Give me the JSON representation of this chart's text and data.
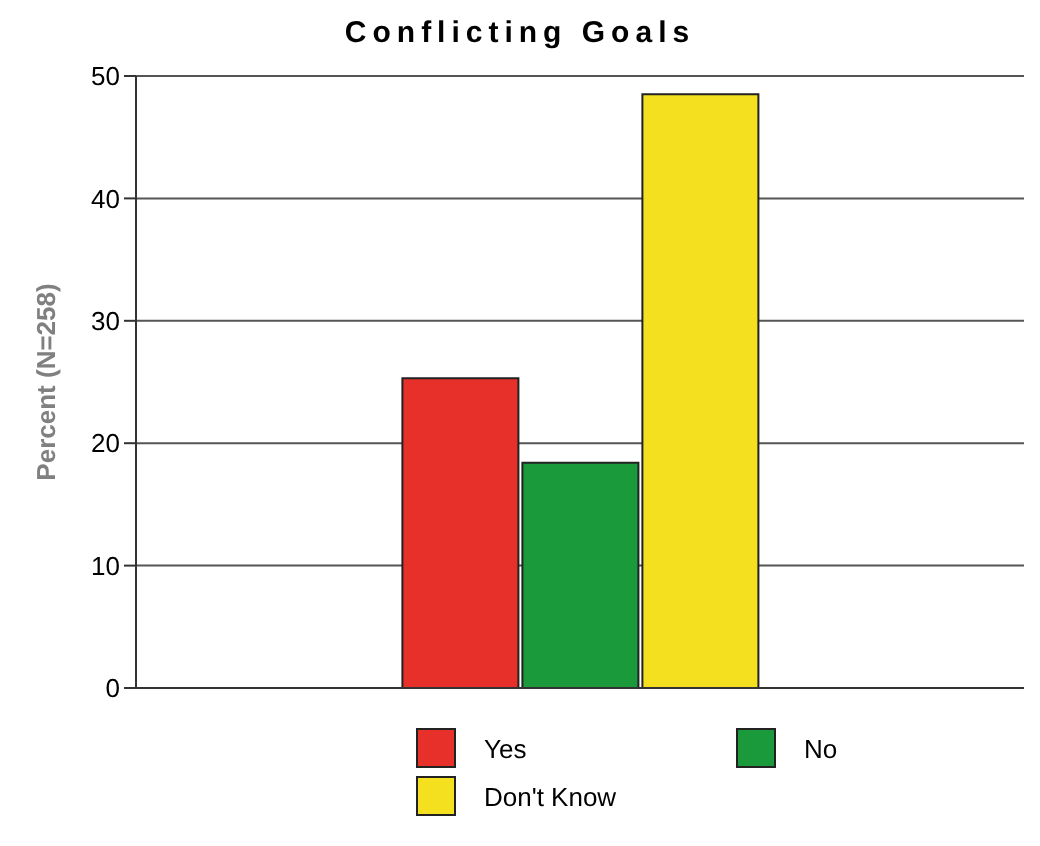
{
  "chart_data": {
    "type": "bar",
    "title": "Conflicting Goals",
    "ylabel": "Percent (N=258)",
    "categories": [
      null
    ],
    "series": [
      {
        "name": "Yes",
        "color": "#e8302a",
        "values": [
          25.3
        ]
      },
      {
        "name": "No",
        "color": "#1a9a3a",
        "values": [
          18.4
        ]
      },
      {
        "name": "Don't Know",
        "color": "#f5e020",
        "values": [
          48.5
        ]
      }
    ],
    "ylim": [
      0,
      50
    ],
    "yticks": [
      0,
      10,
      20,
      30,
      40,
      50
    ],
    "grid": "y",
    "legend": "bottom"
  }
}
